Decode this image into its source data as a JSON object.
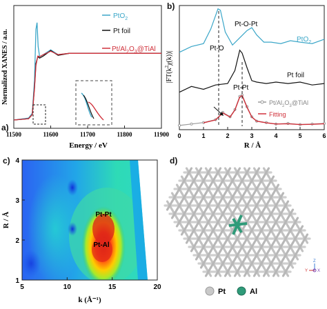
{
  "figure": {
    "panels": [
      {
        "label": "a)",
        "xlabel": "Energy / eV",
        "ylabel": "Normalized XANES / a.u.",
        "xticks": [
          "11500",
          "11600",
          "11700",
          "11800",
          "11900"
        ],
        "legend": [
          {
            "text": "PtO",
            "sub": "2",
            "color": "#3aa6c8"
          },
          {
            "text": "Pt foil",
            "sub": "",
            "color": "#111111"
          },
          {
            "text": "Pt/Al",
            "sub": "2",
            "rest": "O",
            "sub2": "3",
            "rest2": "@TiAl",
            "color": "#d0303a"
          }
        ]
      },
      {
        "label": "b)",
        "xlabel": "R / Å",
        "ylabel": "|FT(k²χ(k))|",
        "xticks": [
          "0",
          "1",
          "2",
          "3",
          "4",
          "5",
          "6"
        ],
        "annotations": [
          "Pt-O",
          "Pt-O-Pt",
          "Pt-Pt"
        ],
        "series_labels": [
          "PtO2",
          "Pt foil",
          "Pt/Al2O3@TiAl",
          "Fitting"
        ],
        "colors": {
          "pto2": "#3aa6c8",
          "foil": "#111111",
          "sample": "#9a9a9a",
          "fit": "#d0303a"
        }
      },
      {
        "label": "c)",
        "xlabel": "k (Å⁻¹)",
        "ylabel": "R / Å",
        "xticks": [
          "5",
          "10",
          "15",
          "20"
        ],
        "yticks": [
          "1",
          "2",
          "3",
          "4"
        ],
        "annotations": [
          "Pt-Pt",
          "Pt-Al"
        ]
      },
      {
        "label": "d)",
        "legend": [
          {
            "text": "Pt",
            "color": "#c9c9c9"
          },
          {
            "text": "Al",
            "color": "#2f9b79"
          }
        ],
        "axis_labels": [
          "Z",
          "Y",
          "X"
        ]
      }
    ]
  },
  "chart_data": [
    {
      "type": "line",
      "title": "",
      "xlabel": "Energy / eV",
      "ylabel": "Normalized XANES / a.u.",
      "xlim": [
        11500,
        11900
      ],
      "series": [
        {
          "name": "PtO2",
          "x": [
            11500,
            11540,
            11550,
            11556,
            11560,
            11563,
            11566,
            11570,
            11580,
            11600,
            11620,
            11650,
            11700,
            11800,
            11900
          ],
          "y": [
            0.02,
            0.05,
            0.12,
            0.6,
            1.35,
            1.45,
            1.1,
            0.95,
            0.98,
            1.05,
            0.98,
            1.0,
            1.0,
            1.0,
            1.0
          ]
        },
        {
          "name": "Pt foil",
          "x": [
            11500,
            11540,
            11550,
            11556,
            11560,
            11565,
            11570,
            11580,
            11600,
            11620,
            11650,
            11700,
            11800,
            11900
          ],
          "y": [
            0.02,
            0.04,
            0.1,
            0.5,
            0.85,
            0.95,
            0.93,
            0.96,
            1.04,
            0.97,
            1.0,
            1.0,
            1.0,
            1.0
          ]
        },
        {
          "name": "Pt/Al2O3@TiAl",
          "x": [
            11500,
            11540,
            11550,
            11556,
            11560,
            11565,
            11570,
            11580,
            11600,
            11620,
            11650,
            11700,
            11800,
            11900
          ],
          "y": [
            0.02,
            0.04,
            0.1,
            0.48,
            0.82,
            0.96,
            0.95,
            0.98,
            1.03,
            0.98,
            1.0,
            1.0,
            1.0,
            1.0
          ]
        }
      ]
    },
    {
      "type": "line",
      "title": "",
      "xlabel": "R / Å",
      "ylabel": "|FT(k²χ(k))|",
      "xlim": [
        0,
        6
      ],
      "series": [
        {
          "name": "PtO2",
          "x": [
            0,
            0.5,
            1.0,
            1.3,
            1.6,
            1.7,
            1.9,
            2.2,
            2.5,
            2.8,
            3.0,
            3.2,
            3.5,
            3.8,
            4.2,
            4.6,
            5.0,
            5.5,
            6.0
          ],
          "y": [
            0.1,
            0.3,
            0.4,
            0.9,
            1.6,
            1.55,
            0.8,
            0.35,
            0.6,
            0.85,
            0.95,
            0.7,
            0.45,
            0.45,
            0.4,
            0.5,
            0.45,
            0.4,
            0.55
          ]
        },
        {
          "name": "Pt foil",
          "x": [
            0,
            0.5,
            1.0,
            1.5,
            2.0,
            2.3,
            2.5,
            2.6,
            2.8,
            3.0,
            3.2,
            3.6,
            4.0,
            4.5,
            5.0,
            5.5,
            6.0
          ],
          "y": [
            0.15,
            0.35,
            0.25,
            0.4,
            0.45,
            0.9,
            1.6,
            1.5,
            1.0,
            0.55,
            0.5,
            0.45,
            0.5,
            0.45,
            0.5,
            0.4,
            0.45
          ]
        },
        {
          "name": "Pt/Al2O3@TiAl",
          "x": [
            0,
            0.5,
            1.0,
            1.5,
            1.8,
            2.1,
            2.3,
            2.5,
            2.6,
            2.8,
            3.0,
            3.2,
            3.6,
            4.0,
            4.5,
            5.0,
            5.5,
            6.0
          ],
          "y": [
            0.05,
            0.1,
            0.15,
            0.25,
            0.5,
            0.35,
            0.6,
            1.05,
            1.1,
            0.7,
            0.35,
            0.2,
            0.15,
            0.1,
            0.12,
            0.08,
            0.1,
            0.12
          ]
        },
        {
          "name": "Fitting",
          "x": [
            1.0,
            1.5,
            1.8,
            2.1,
            2.3,
            2.5,
            2.6,
            2.8,
            3.0,
            3.2,
            3.6,
            4.0,
            4.5,
            5.0,
            5.5,
            6.0
          ],
          "y": [
            0.14,
            0.24,
            0.48,
            0.34,
            0.58,
            1.03,
            1.08,
            0.68,
            0.34,
            0.2,
            0.14,
            0.1,
            0.11,
            0.08,
            0.09,
            0.11
          ]
        }
      ]
    },
    {
      "type": "heatmap",
      "title": "",
      "xlabel": "k (Å⁻¹)",
      "ylabel": "R / Å",
      "xlim": [
        5,
        20
      ],
      "ylim": [
        1,
        4
      ],
      "hotspots": [
        {
          "label": "Pt-Pt",
          "k": 13.8,
          "R": 2.65
        },
        {
          "label": "Pt-Al",
          "k": 13.5,
          "R": 1.95
        }
      ]
    }
  ]
}
